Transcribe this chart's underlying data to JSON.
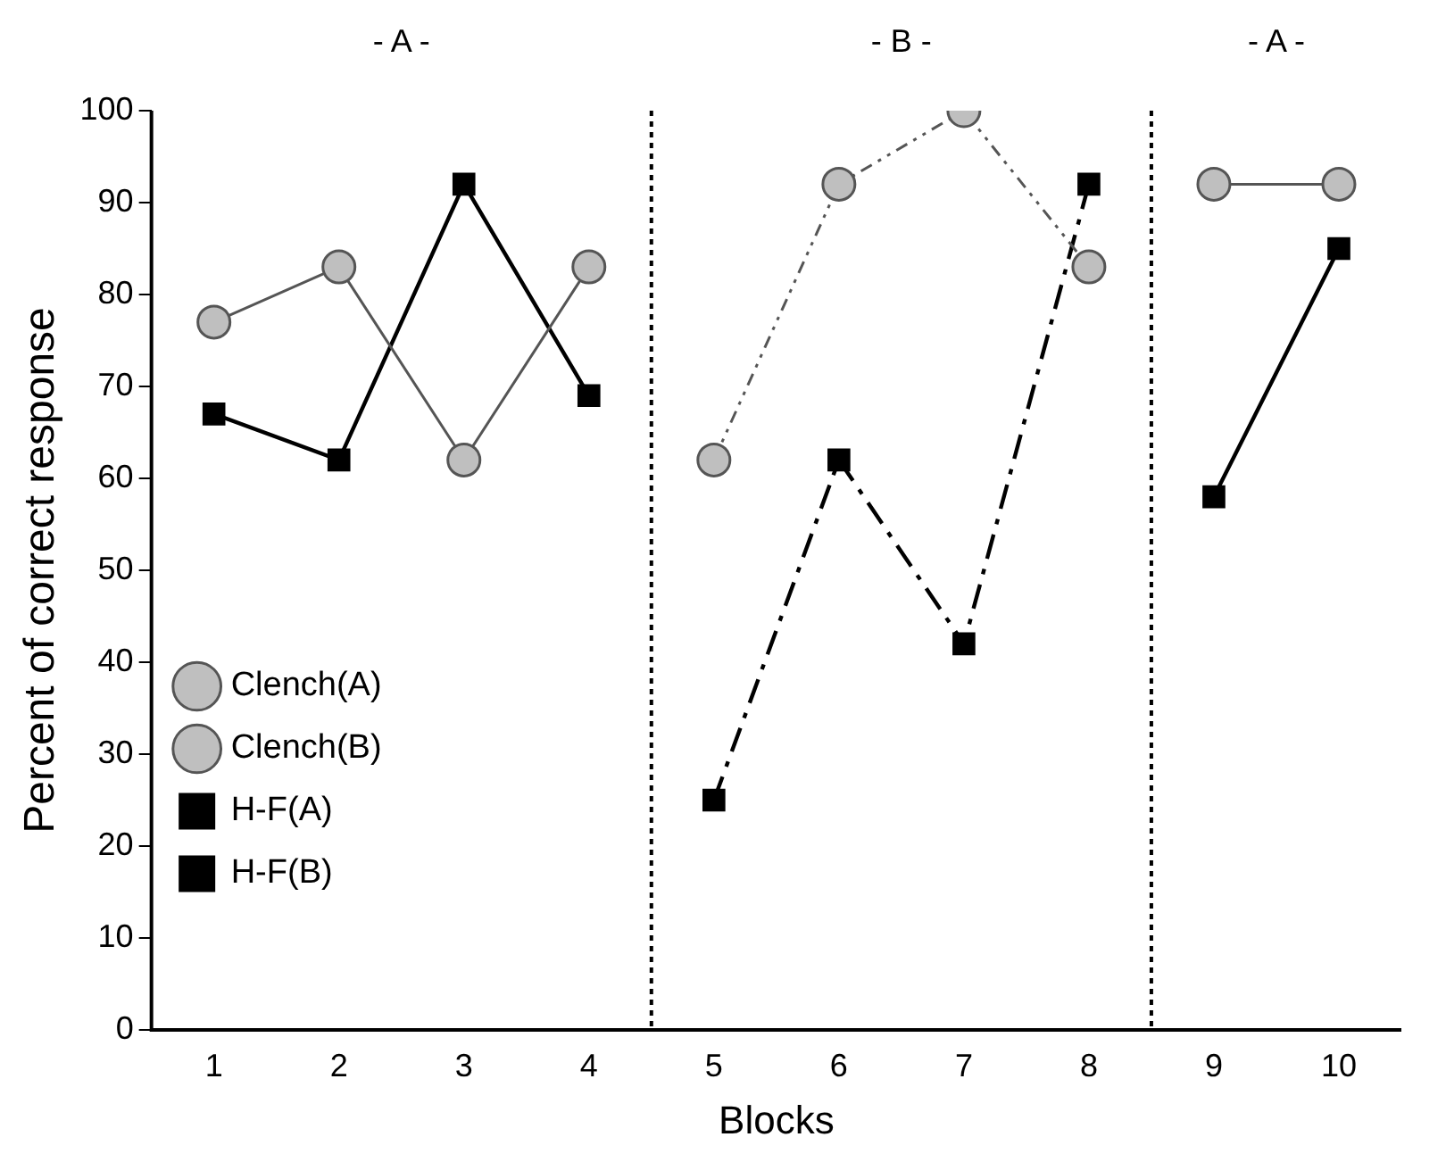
{
  "chart_data": {
    "type": "line",
    "xlabel": "Blocks",
    "ylabel": "Percent of correct response",
    "x": [
      1,
      2,
      3,
      4,
      5,
      6,
      7,
      8,
      9,
      10
    ],
    "xlim": [
      0.5,
      10.5
    ],
    "xticks": [
      1,
      2,
      3,
      4,
      5,
      6,
      7,
      8,
      9,
      10
    ],
    "ylim": [
      0,
      100
    ],
    "yticks": [
      0,
      10,
      20,
      30,
      40,
      50,
      60,
      70,
      80,
      90,
      100
    ],
    "grid": false,
    "legend": "bottom left",
    "series": [
      {
        "name": "Clench(A)",
        "color": "#bfbfbf",
        "marker": "circle",
        "line_style": "solid",
        "values": [
          77,
          83,
          62,
          83,
          null,
          null,
          null,
          null,
          92,
          92
        ]
      },
      {
        "name": "Clench(B)",
        "color": "#bfbfbf",
        "marker": "circle",
        "line_style": "dotted",
        "values": [
          null,
          null,
          null,
          null,
          62,
          92,
          100,
          83,
          null,
          null
        ]
      },
      {
        "name": "H-F(A)",
        "color": "#000000",
        "marker": "square",
        "line_style": "solid",
        "values": [
          67,
          62,
          92,
          69,
          null,
          null,
          null,
          null,
          58,
          85
        ]
      },
      {
        "name": "H-F(B)",
        "color": "#000000",
        "marker": "square",
        "line_style": "dashed",
        "values": [
          null,
          null,
          null,
          null,
          25,
          62,
          42,
          92,
          null,
          null
        ]
      }
    ],
    "ref_lines": [
      {
        "axis": "x",
        "value": 4.5,
        "line_style": "dotted"
      },
      {
        "axis": "x",
        "value": 8.5,
        "line_style": "dotted"
      }
    ],
    "annotations": [
      "- A -",
      "- B -",
      "- A -"
    ]
  }
}
